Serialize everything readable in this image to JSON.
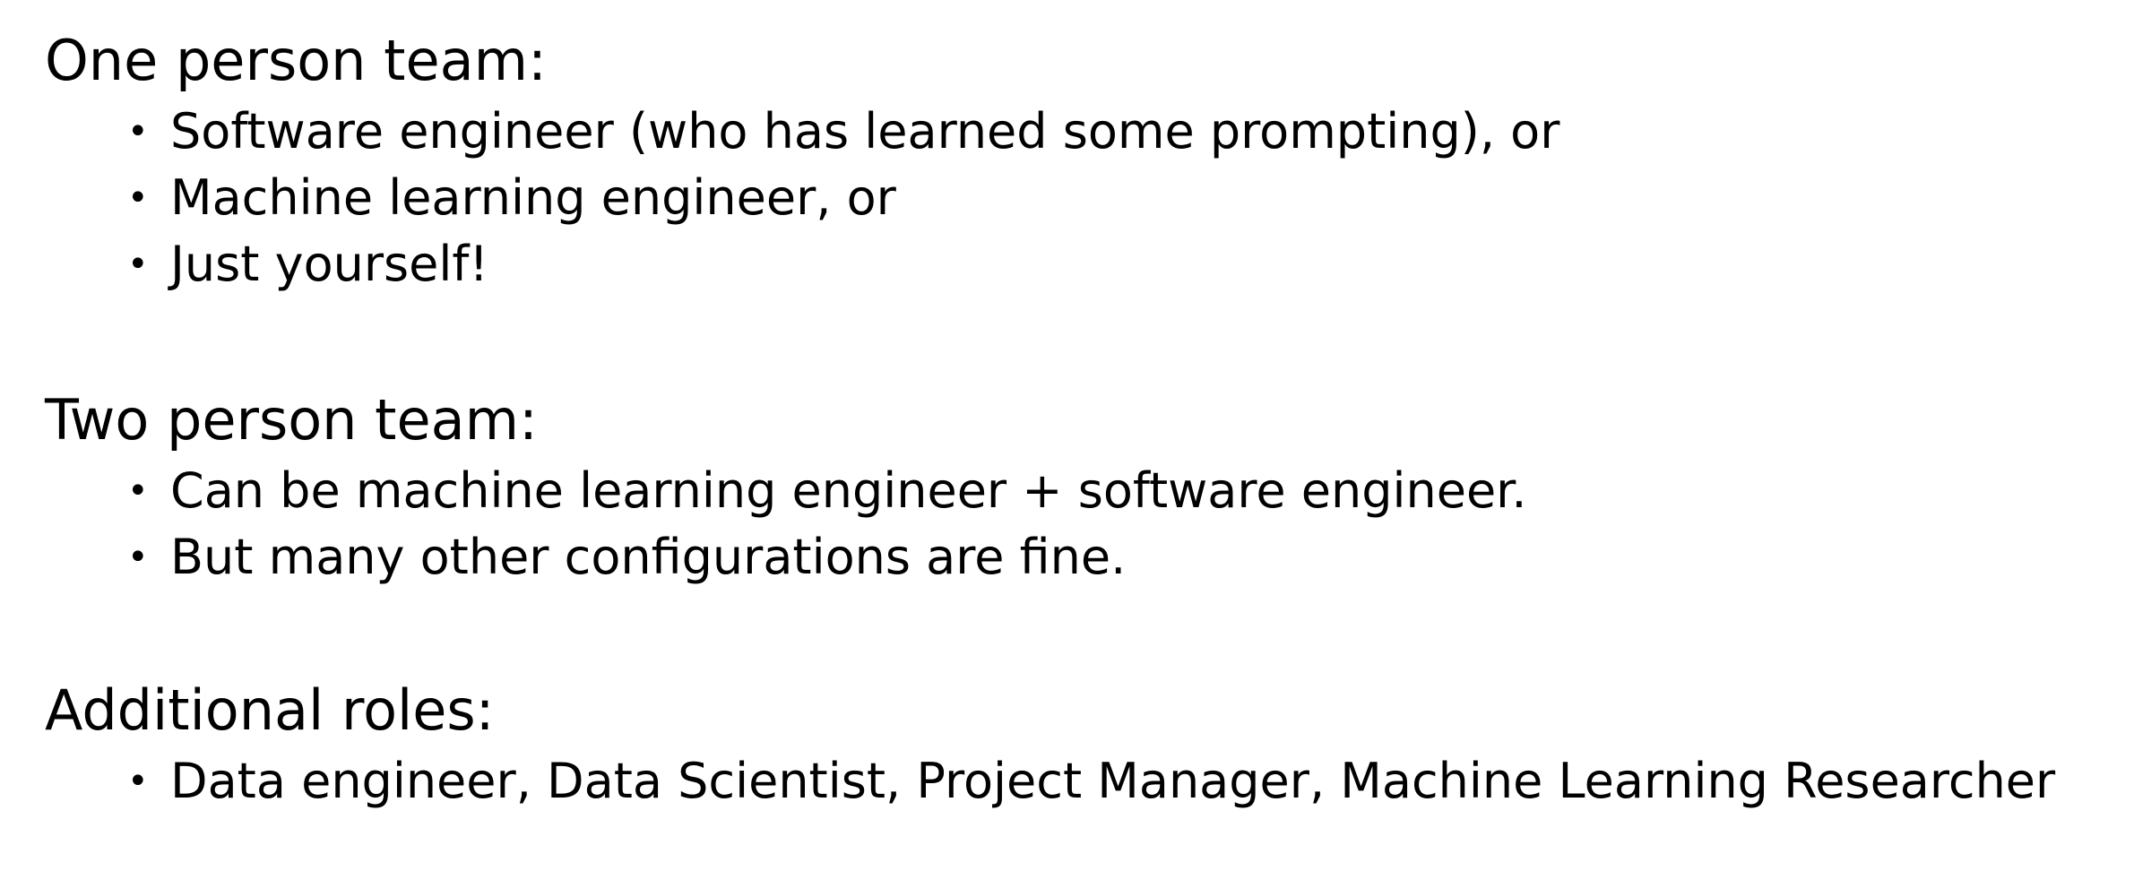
{
  "sections": [
    {
      "heading": "One person team:",
      "items": [
        "Software engineer (who has learned some prompting), or",
        "Machine learning engineer, or",
        "Just yourself!"
      ]
    },
    {
      "heading": "Two person team:",
      "items": [
        "Can be machine learning engineer + software engineer.",
        "But many other configurations are fine."
      ]
    },
    {
      "heading": "Additional roles:",
      "items": [
        "Data engineer, Data Scientist, Project Manager, Machine Learning Researcher"
      ]
    }
  ],
  "bullet_glyph": "•"
}
